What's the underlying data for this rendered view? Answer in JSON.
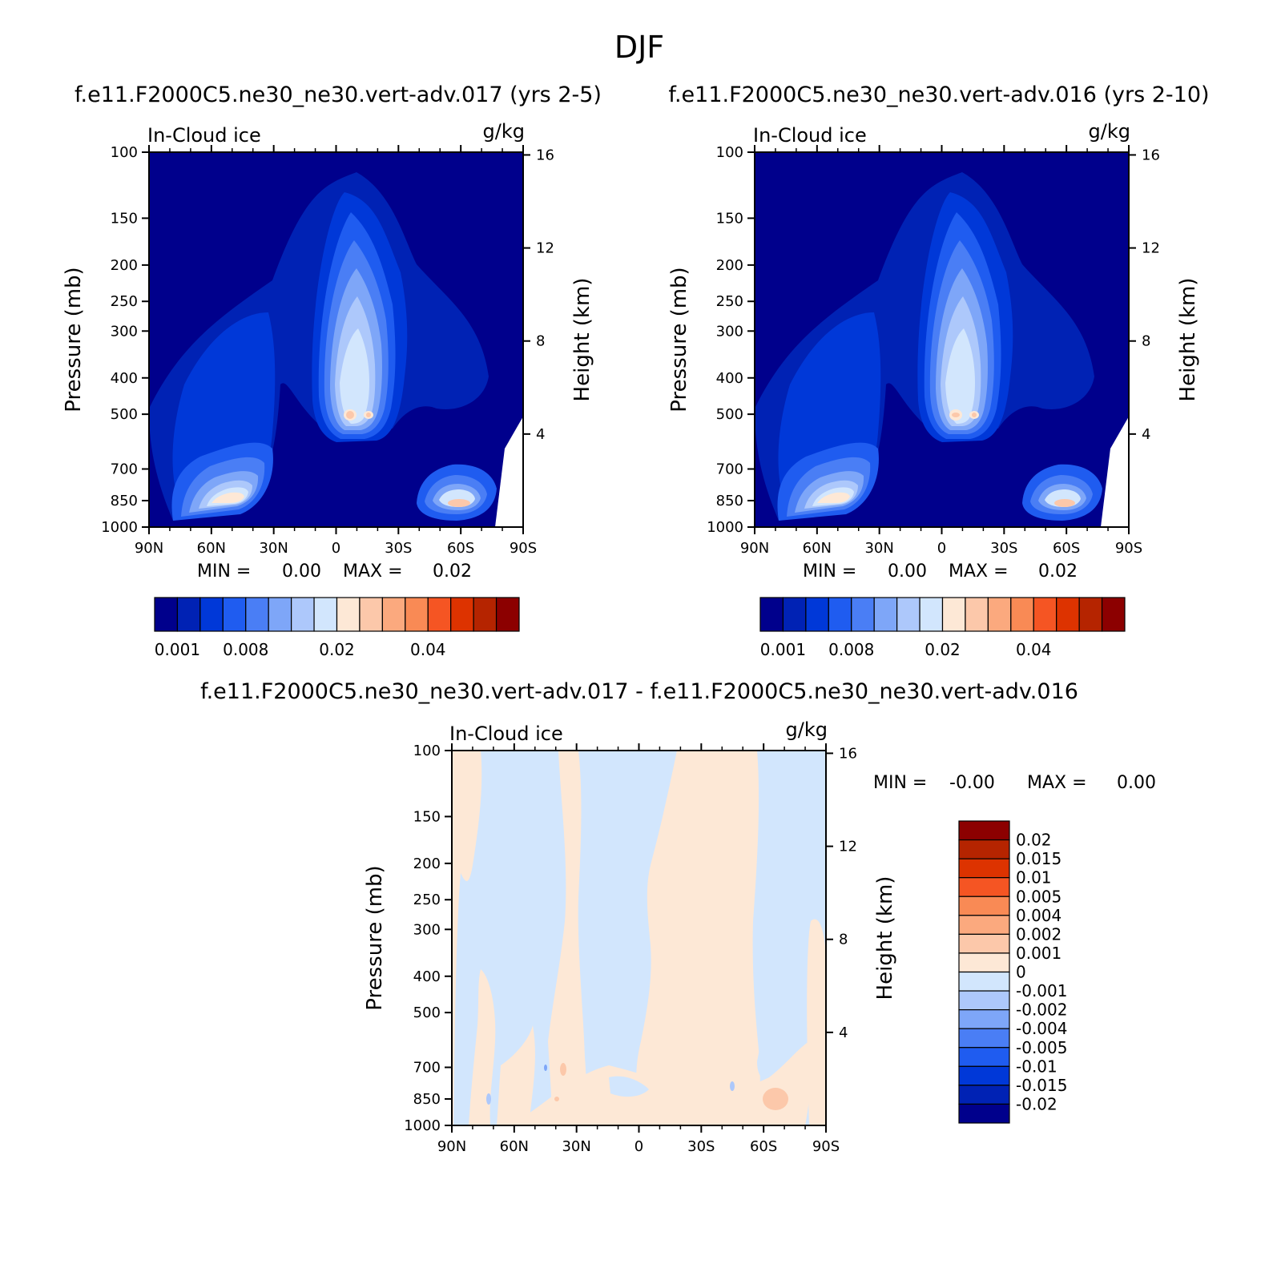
{
  "figure": {
    "title": "DJF"
  },
  "chart_data": [
    {
      "type": "heatmap",
      "title": "f.e11.F2000C5.ne30_ne30.vert-adv.017 (yrs 2-5)",
      "left_label": "In-Cloud ice",
      "units": "g/kg",
      "xlabel": "",
      "ylabel": "Pressure (mb)",
      "y2label": "Height (km)",
      "x_ticks": [
        "90N",
        "60N",
        "30N",
        "0",
        "30S",
        "60S",
        "90S"
      ],
      "y_ticks": [
        100,
        150,
        200,
        250,
        300,
        400,
        500,
        700,
        850,
        1000
      ],
      "y2_ticks": [
        16,
        12,
        8,
        4
      ],
      "ylim": [
        1000,
        100
      ],
      "y_scale": "log",
      "min_label": "MIN =",
      "min_value": "0.00",
      "max_label": "MAX =",
      "max_value": "0.02",
      "colorbar": {
        "orientation": "horizontal",
        "labels": [
          "0.001",
          "0.008",
          "0.02",
          "0.04"
        ],
        "colors": [
          "#00008c",
          "#0022b4",
          "#0038d8",
          "#1f5cf0",
          "#4a7ef5",
          "#7ea6f8",
          "#adc8fb",
          "#d2e6fd",
          "#fde8d6",
          "#fcc8aa",
          "#fba97e",
          "#f98a55",
          "#f55523",
          "#dd3300",
          "#b52400",
          "#8c0000"
        ]
      }
    },
    {
      "type": "heatmap",
      "title": "f.e11.F2000C5.ne30_ne30.vert-adv.016 (yrs 2-10)",
      "left_label": "In-Cloud ice",
      "units": "g/kg",
      "xlabel": "",
      "ylabel": "Pressure (mb)",
      "y2label": "Height (km)",
      "x_ticks": [
        "90N",
        "60N",
        "30N",
        "0",
        "30S",
        "60S",
        "90S"
      ],
      "y_ticks": [
        100,
        150,
        200,
        250,
        300,
        400,
        500,
        700,
        850,
        1000
      ],
      "y2_ticks": [
        16,
        12,
        8,
        4
      ],
      "ylim": [
        1000,
        100
      ],
      "y_scale": "log",
      "min_label": "MIN =",
      "min_value": "0.00",
      "max_label": "MAX =",
      "max_value": "0.02",
      "colorbar": {
        "orientation": "horizontal",
        "labels": [
          "0.001",
          "0.008",
          "0.02",
          "0.04"
        ],
        "colors": [
          "#00008c",
          "#0022b4",
          "#0038d8",
          "#1f5cf0",
          "#4a7ef5",
          "#7ea6f8",
          "#adc8fb",
          "#d2e6fd",
          "#fde8d6",
          "#fcc8aa",
          "#fba97e",
          "#f98a55",
          "#f55523",
          "#dd3300",
          "#b52400",
          "#8c0000"
        ]
      }
    },
    {
      "type": "heatmap",
      "title": "f.e11.F2000C5.ne30_ne30.vert-adv.017 - f.e11.F2000C5.ne30_ne30.vert-adv.016",
      "left_label": "In-Cloud ice",
      "units": "g/kg",
      "xlabel": "",
      "ylabel": "Pressure (mb)",
      "y2label": "Height (km)",
      "x_ticks": [
        "90N",
        "60N",
        "30N",
        "0",
        "30S",
        "60S",
        "90S"
      ],
      "y_ticks": [
        100,
        150,
        200,
        250,
        300,
        400,
        500,
        700,
        850,
        1000
      ],
      "y2_ticks": [
        16,
        12,
        8,
        4
      ],
      "ylim": [
        1000,
        100
      ],
      "y_scale": "log",
      "min_label": "MIN =",
      "min_value": "-0.00",
      "max_label": "MAX =",
      "max_value": "0.00",
      "colorbar": {
        "orientation": "vertical",
        "labels": [
          "0.02",
          "0.015",
          "0.01",
          "0.005",
          "0.004",
          "0.002",
          "0.001",
          "0",
          "-0.001",
          "-0.002",
          "-0.004",
          "-0.005",
          "-0.01",
          "-0.015",
          "-0.02"
        ],
        "colors": [
          "#8c0000",
          "#b52400",
          "#dd3300",
          "#f55523",
          "#f98a55",
          "#fba97e",
          "#fcc8aa",
          "#fde8d6",
          "#d2e6fd",
          "#adc8fb",
          "#7ea6f8",
          "#4a7ef5",
          "#1f5cf0",
          "#0038d8",
          "#0022b4",
          "#00008c"
        ]
      }
    }
  ]
}
